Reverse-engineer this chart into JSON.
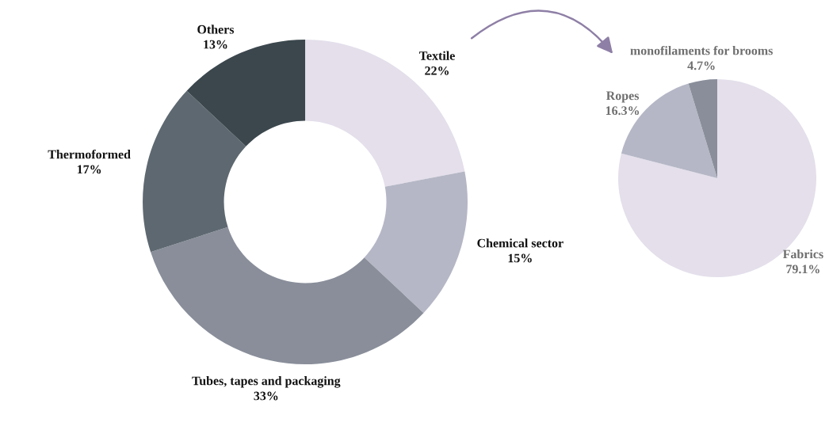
{
  "chart_data": [
    {
      "type": "donut",
      "categories": [
        "Textile",
        "Chemical sector",
        "Tubes, tapes and packaging",
        "Thermoformed",
        "Others"
      ],
      "values": [
        22,
        15,
        33,
        17,
        13
      ],
      "value_labels": [
        "22%",
        "15%",
        "33%",
        "17%",
        "13%"
      ],
      "colors": [
        "#e4dfeb",
        "#b5b7c6",
        "#898e9a",
        "#5e6870",
        "#3b474d"
      ]
    },
    {
      "type": "pie",
      "categories": [
        "Fabrics",
        "Ropes",
        "monofilaments for brooms"
      ],
      "values": [
        79.1,
        16.3,
        4.7
      ],
      "value_labels": [
        "79.1%",
        "16.3%",
        "4.7%"
      ],
      "colors": [
        "#e4dfeb",
        "#b5b7c6",
        "#898e9a"
      ]
    }
  ]
}
